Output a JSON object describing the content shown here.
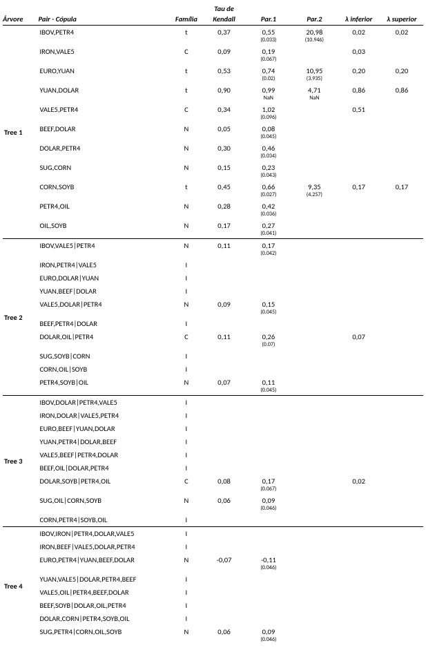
{
  "headers": {
    "arvore": "Árvore",
    "pair": "Pair - Cópula",
    "familia": "Família",
    "tau_top": "Tau de",
    "tau": "Kendall",
    "par1": "Par.1",
    "par2": "Par.2",
    "linf": "λ inferior",
    "lsup": "λ superior"
  },
  "trees": [
    {
      "label": "Tree 1",
      "rows": [
        {
          "pair": "IBOV,PETR4",
          "fam": "t",
          "tau": "0,37",
          "p1": "0,55",
          "p1s": "(0.033)",
          "p2": "20,98",
          "p2s": "(10.946)",
          "li": "0,02",
          "ls": "0,02"
        },
        {
          "pair": "IRON,VALE5",
          "fam": "C",
          "tau": "0,09",
          "p1": "0,19",
          "p1s": "(0.067)",
          "p2": "",
          "p2s": "",
          "li": "0,03",
          "ls": ""
        },
        {
          "pair": "EURO,YUAN",
          "fam": "t",
          "tau": "0,53",
          "p1": "0,74",
          "p1s": "(0.02)",
          "p2": "10,95",
          "p2s": "(3.935)",
          "li": "0,20",
          "ls": "0,20"
        },
        {
          "pair": "YUAN,DOLAR",
          "fam": "t",
          "tau": "0,90",
          "p1": "0,99",
          "p1s": "NaN",
          "p2": "4,71",
          "p2s": "NaN",
          "li": "0,86",
          "ls": "0,86"
        },
        {
          "pair": "VALE5,PETR4",
          "fam": "C",
          "tau": "0,34",
          "p1": "1,02",
          "p1s": "(0.096)",
          "p2": "",
          "p2s": "",
          "li": "0,51",
          "ls": ""
        },
        {
          "pair": "BEEF,DOLAR",
          "fam": "N",
          "tau": "0,05",
          "p1": "0,08",
          "p1s": "(0.045)",
          "p2": "",
          "p2s": "",
          "li": "",
          "ls": ""
        },
        {
          "pair": "DOLAR,PETR4",
          "fam": "N",
          "tau": "0,30",
          "p1": "0,46",
          "p1s": "(0.034)",
          "p2": "",
          "p2s": "",
          "li": "",
          "ls": ""
        },
        {
          "pair": "SUG,CORN",
          "fam": "N",
          "tau": "0,15",
          "p1": "0,23",
          "p1s": "(0.043)",
          "p2": "",
          "p2s": "",
          "li": "",
          "ls": ""
        },
        {
          "pair": "CORN,SOYB",
          "fam": "t",
          "tau": "0,45",
          "p1": "0,66",
          "p1s": "(0.027)",
          "p2": "9,35",
          "p2s": "(4.257)",
          "li": "0,17",
          "ls": "0,17"
        },
        {
          "pair": "PETR4,OIL",
          "fam": "N",
          "tau": "0,28",
          "p1": "0,42",
          "p1s": "(0.036)",
          "p2": "",
          "p2s": "",
          "li": "",
          "ls": ""
        },
        {
          "pair": "OIL,SOYB",
          "fam": "N",
          "tau": "0,17",
          "p1": "0,27",
          "p1s": "(0.041)",
          "p2": "",
          "p2s": "",
          "li": "",
          "ls": ""
        }
      ]
    },
    {
      "label": "Tree 2",
      "rows": [
        {
          "pair": "IBOV,VALE5|PETR4",
          "fam": "N",
          "tau": "0,11",
          "p1": "0,17",
          "p1s": "(0.042)",
          "p2": "",
          "p2s": "",
          "li": "",
          "ls": ""
        },
        {
          "pair": "IRON,PETR4|VALE5",
          "fam": "I",
          "tau": "",
          "p1": "",
          "p1s": "",
          "p2": "",
          "p2s": "",
          "li": "",
          "ls": ""
        },
        {
          "pair": "EURO,DOLAR|YUAN",
          "fam": "I",
          "tau": "",
          "p1": "",
          "p1s": "",
          "p2": "",
          "p2s": "",
          "li": "",
          "ls": ""
        },
        {
          "pair": "YUAN,BEEF|DOLAR",
          "fam": "I",
          "tau": "",
          "p1": "",
          "p1s": "",
          "p2": "",
          "p2s": "",
          "li": "",
          "ls": ""
        },
        {
          "pair": "VALE5,DOLAR|PETR4",
          "fam": "N",
          "tau": "0,09",
          "p1": "0,15",
          "p1s": "(0.045)",
          "p2": "",
          "p2s": "",
          "li": "",
          "ls": ""
        },
        {
          "pair": "BEEF,PETR4|DOLAR",
          "fam": "I",
          "tau": "",
          "p1": "",
          "p1s": "",
          "p2": "",
          "p2s": "",
          "li": "",
          "ls": ""
        },
        {
          "pair": "DOLAR,OIL|PETR4",
          "fam": "C",
          "tau": "0,11",
          "p1": "0,26",
          "p1s": "(0.07)",
          "p2": "",
          "p2s": "",
          "li": "0,07",
          "ls": ""
        },
        {
          "pair": "SUG,SOYB|CORN",
          "fam": "I",
          "tau": "",
          "p1": "",
          "p1s": "",
          "p2": "",
          "p2s": "",
          "li": "",
          "ls": ""
        },
        {
          "pair": "CORN,OIL|SOYB",
          "fam": "I",
          "tau": "",
          "p1": "",
          "p1s": "",
          "p2": "",
          "p2s": "",
          "li": "",
          "ls": ""
        },
        {
          "pair": "PETR4,SOYB|OIL",
          "fam": "N",
          "tau": "0,07",
          "p1": "0,11",
          "p1s": "(0.045)",
          "p2": "",
          "p2s": "",
          "li": "",
          "ls": ""
        }
      ]
    },
    {
      "label": "Tree 3",
      "rows": [
        {
          "pair": "IBOV,DOLAR|PETR4,VALE5",
          "fam": "I",
          "tau": "",
          "p1": "",
          "p1s": "",
          "p2": "",
          "p2s": "",
          "li": "",
          "ls": ""
        },
        {
          "pair": "IRON,DOLAR|VALE5,PETR4",
          "fam": "I",
          "tau": "",
          "p1": "",
          "p1s": "",
          "p2": "",
          "p2s": "",
          "li": "",
          "ls": ""
        },
        {
          "pair": "EURO,BEEF|YUAN,DOLAR",
          "fam": "I",
          "tau": "",
          "p1": "",
          "p1s": "",
          "p2": "",
          "p2s": "",
          "li": "",
          "ls": ""
        },
        {
          "pair": "YUAN,PETR4|DOLAR,BEEF",
          "fam": "I",
          "tau": "",
          "p1": "",
          "p1s": "",
          "p2": "",
          "p2s": "",
          "li": "",
          "ls": ""
        },
        {
          "pair": "VALE5,BEEF|PETR4,DOLAR",
          "fam": "I",
          "tau": "",
          "p1": "",
          "p1s": "",
          "p2": "",
          "p2s": "",
          "li": "",
          "ls": ""
        },
        {
          "pair": "BEEF,OIL|DOLAR,PETR4",
          "fam": "I",
          "tau": "",
          "p1": "",
          "p1s": "",
          "p2": "",
          "p2s": "",
          "li": "",
          "ls": ""
        },
        {
          "pair": "DOLAR,SOYB|PETR4,OIL",
          "fam": "C",
          "tau": "0,08",
          "p1": "0,17",
          "p1s": "(0.067)",
          "p2": "",
          "p2s": "",
          "li": "0,02",
          "ls": ""
        },
        {
          "pair": "SUG,OIL|CORN,SOYB",
          "fam": "N",
          "tau": "0,06",
          "p1": "0,09",
          "p1s": "(0.046)",
          "p2": "",
          "p2s": "",
          "li": "",
          "ls": ""
        },
        {
          "pair": "CORN,PETR4|SOYB,OIL",
          "fam": "I",
          "tau": "",
          "p1": "",
          "p1s": "",
          "p2": "",
          "p2s": "",
          "li": "",
          "ls": ""
        }
      ]
    },
    {
      "label": "Tree 4",
      "rows": [
        {
          "pair": "IBOV,IRON|PETR4,DOLAR,VALE5",
          "fam": "I",
          "tau": "",
          "p1": "",
          "p1s": "",
          "p2": "",
          "p2s": "",
          "li": "",
          "ls": ""
        },
        {
          "pair": "IRON,BEEF|VALE5,DOLAR,PETR4",
          "fam": "I",
          "tau": "",
          "p1": "",
          "p1s": "",
          "p2": "",
          "p2s": "",
          "li": "",
          "ls": ""
        },
        {
          "pair": "EURO,PETR4|YUAN,BEEF,DOLAR",
          "fam": "N",
          "tau": "-0,07",
          "p1": "-0,11",
          "p1s": "(0.046)",
          "p2": "",
          "p2s": "",
          "li": "",
          "ls": ""
        },
        {
          "pair": "YUAN,VALE5|DOLAR,PETR4,BEEF",
          "fam": "I",
          "tau": "",
          "p1": "",
          "p1s": "",
          "p2": "",
          "p2s": "",
          "li": "",
          "ls": ""
        },
        {
          "pair": "VALE5,OIL|PETR4,BEEF,DOLAR",
          "fam": "I",
          "tau": "",
          "p1": "",
          "p1s": "",
          "p2": "",
          "p2s": "",
          "li": "",
          "ls": ""
        },
        {
          "pair": "BEEF,SOYB|DOLAR,OIL,PETR4",
          "fam": "I",
          "tau": "",
          "p1": "",
          "p1s": "",
          "p2": "",
          "p2s": "",
          "li": "",
          "ls": ""
        },
        {
          "pair": "DOLAR,CORN|PETR4,SOYB,OIL",
          "fam": "I",
          "tau": "",
          "p1": "",
          "p1s": "",
          "p2": "",
          "p2s": "",
          "li": "",
          "ls": ""
        },
        {
          "pair": "SUG,PETR4|CORN,OIL,SOYB",
          "fam": "N",
          "tau": "0,06",
          "p1": "0,09",
          "p1s": "(0.046)",
          "p2": "",
          "p2s": "",
          "li": "",
          "ls": ""
        }
      ]
    }
  ]
}
